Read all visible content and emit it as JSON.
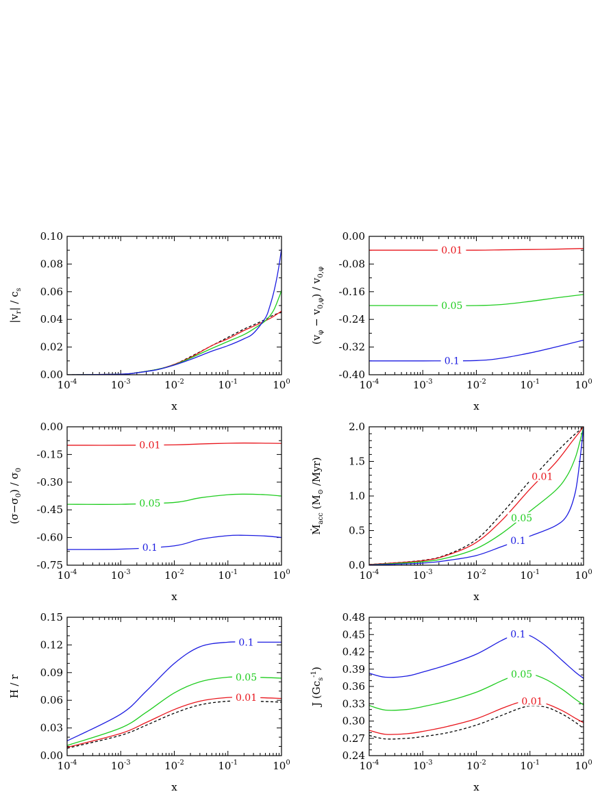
{
  "colors": {
    "red": "#e8141b",
    "green": "#1ecc1e",
    "blue": "#1a1ae0",
    "dashed": "#000000"
  },
  "chart_data": [
    {
      "type": "line",
      "xlabel": "x",
      "ylabel_parts": [
        "|v",
        "r",
        "| / c",
        "s"
      ],
      "xscale": "log",
      "xlim": [
        0.0001,
        1
      ],
      "ylim": [
        0,
        0.1
      ],
      "yticks": [
        0,
        0.02,
        0.04,
        0.06,
        0.08,
        0.1
      ],
      "ytick_labels": [
        "0.00",
        "0.02",
        "0.04",
        "0.06",
        "0.08",
        "0.10"
      ],
      "ytick_minor": 2,
      "series": [
        {
          "label": "",
          "color": "red",
          "dash": true,
          "x": [
            0.0001,
            0.001,
            0.002,
            0.005,
            0.01,
            0.02,
            0.05,
            0.1,
            0.2,
            0.3,
            0.5,
            0.7,
            1
          ],
          "y": [
            0,
            0.0004,
            0.0015,
            0.004,
            0.0075,
            0.013,
            0.021,
            0.027,
            0.033,
            0.036,
            0.04,
            0.043,
            0.045
          ]
        },
        {
          "label": "",
          "color": "red",
          "x": [
            0.0001,
            0.001,
            0.002,
            0.005,
            0.01,
            0.02,
            0.05,
            0.1,
            0.2,
            0.3,
            0.5,
            0.7,
            1
          ],
          "y": [
            0,
            0.0004,
            0.0015,
            0.004,
            0.0075,
            0.0125,
            0.021,
            0.026,
            0.032,
            0.035,
            0.039,
            0.042,
            0.046
          ]
        },
        {
          "label": "",
          "color": "green",
          "x": [
            0.0001,
            0.001,
            0.002,
            0.005,
            0.01,
            0.02,
            0.05,
            0.1,
            0.2,
            0.3,
            0.5,
            0.7,
            0.9,
            1
          ],
          "y": [
            0,
            0.0004,
            0.0015,
            0.004,
            0.0072,
            0.012,
            0.019,
            0.024,
            0.029,
            0.033,
            0.039,
            0.046,
            0.056,
            0.061
          ]
        },
        {
          "label": "",
          "color": "blue",
          "x": [
            0.0001,
            0.001,
            0.002,
            0.005,
            0.01,
            0.02,
            0.05,
            0.1,
            0.2,
            0.3,
            0.5,
            0.6,
            0.7,
            0.8,
            0.9,
            1
          ],
          "y": [
            0,
            0.0004,
            0.0014,
            0.0038,
            0.007,
            0.011,
            0.017,
            0.021,
            0.026,
            0.03,
            0.041,
            0.049,
            0.058,
            0.068,
            0.079,
            0.091
          ]
        }
      ]
    },
    {
      "type": "line",
      "xlabel": "x",
      "ylabel_parts": [
        "(v",
        "φ",
        " − v",
        "0,φ",
        ") / v",
        "0,φ"
      ],
      "xscale": "log",
      "xlim": [
        0.0001,
        1
      ],
      "ylim": [
        -0.4,
        0
      ],
      "yticks": [
        -0.4,
        -0.32,
        -0.24,
        -0.16,
        -0.08,
        0
      ],
      "ytick_labels": [
        "-0.40",
        "-0.32",
        "-0.24",
        "-0.16",
        "-0.08",
        "0.00"
      ],
      "ytick_minor": 2,
      "series": [
        {
          "label": "0.01",
          "color": "red",
          "label_x": 0.0035,
          "x": [
            0.0001,
            0.001,
            0.01,
            0.03,
            0.1,
            0.3,
            1
          ],
          "y": [
            -0.04,
            -0.04,
            -0.04,
            -0.039,
            -0.038,
            -0.037,
            -0.035
          ]
        },
        {
          "label": "0.05",
          "color": "green",
          "label_x": 0.0035,
          "x": [
            0.0001,
            0.001,
            0.01,
            0.03,
            0.1,
            0.3,
            1
          ],
          "y": [
            -0.2,
            -0.2,
            -0.2,
            -0.197,
            -0.188,
            -0.178,
            -0.168
          ]
        },
        {
          "label": "0.1",
          "color": "blue",
          "label_x": 0.0035,
          "x": [
            0.0001,
            0.001,
            0.01,
            0.03,
            0.1,
            0.3,
            1
          ],
          "y": [
            -0.36,
            -0.36,
            -0.359,
            -0.352,
            -0.337,
            -0.32,
            -0.3
          ]
        }
      ]
    },
    {
      "type": "line",
      "xlabel": "x",
      "ylabel_parts": [
        "(σ−σ",
        "0",
        ") / σ",
        "0"
      ],
      "xscale": "log",
      "xlim": [
        0.0001,
        1
      ],
      "ylim": [
        -0.75,
        0
      ],
      "yticks": [
        -0.75,
        -0.6,
        -0.45,
        -0.3,
        -0.15,
        0
      ],
      "ytick_labels": [
        "-0.75",
        "-0.60",
        "-0.45",
        "-0.30",
        "-0.15",
        "0.00"
      ],
      "ytick_minor": 2,
      "series": [
        {
          "label": "0.01",
          "color": "red",
          "label_x": 0.0035,
          "x": [
            0.0001,
            0.001,
            0.01,
            0.03,
            0.1,
            0.2,
            0.5,
            1
          ],
          "y": [
            -0.1,
            -0.1,
            -0.098,
            -0.093,
            -0.089,
            -0.088,
            -0.089,
            -0.09
          ]
        },
        {
          "label": "0.05",
          "color": "green",
          "label_x": 0.0035,
          "x": [
            0.0001,
            0.001,
            0.01,
            0.03,
            0.1,
            0.2,
            0.5,
            1
          ],
          "y": [
            -0.42,
            -0.42,
            -0.41,
            -0.385,
            -0.368,
            -0.365,
            -0.368,
            -0.375
          ]
        },
        {
          "label": "0.1",
          "color": "blue",
          "label_x": 0.0035,
          "x": [
            0.0001,
            0.001,
            0.01,
            0.03,
            0.1,
            0.2,
            0.5,
            1
          ],
          "y": [
            -0.665,
            -0.663,
            -0.645,
            -0.61,
            -0.59,
            -0.588,
            -0.592,
            -0.6
          ]
        }
      ]
    },
    {
      "type": "line",
      "xlabel": "x",
      "ylabel_parts": [
        "Ṁ",
        "acc",
        " (M",
        "⊙",
        " /Myr)"
      ],
      "xscale": "log",
      "xlim": [
        0.0001,
        1
      ],
      "ylim": [
        0,
        2
      ],
      "yticks": [
        0,
        0.5,
        1,
        1.5,
        2
      ],
      "ytick_labels": [
        "0.0",
        "0.5",
        "1.0",
        "1.5",
        "2.0"
      ],
      "ytick_minor": 5,
      "series": [
        {
          "label": "",
          "color": "red",
          "dash": true,
          "x": [
            0.0001,
            0.001,
            0.003,
            0.01,
            0.03,
            0.1,
            0.3,
            0.6,
            1
          ],
          "y": [
            0.01,
            0.07,
            0.16,
            0.37,
            0.75,
            1.22,
            1.62,
            1.85,
            2
          ]
        },
        {
          "label": "0.01",
          "color": "red",
          "label_x": 0.17,
          "x": [
            0.0001,
            0.001,
            0.003,
            0.01,
            0.03,
            0.1,
            0.3,
            0.6,
            1
          ],
          "y": [
            0.01,
            0.065,
            0.15,
            0.33,
            0.65,
            1.1,
            1.48,
            1.78,
            2
          ]
        },
        {
          "label": "0.05",
          "color": "green",
          "label_x": 0.07,
          "x": [
            0.0001,
            0.001,
            0.003,
            0.01,
            0.03,
            0.1,
            0.3,
            0.5,
            0.7,
            0.85,
            1
          ],
          "y": [
            0.005,
            0.05,
            0.11,
            0.24,
            0.46,
            0.78,
            1.08,
            1.3,
            1.55,
            1.78,
            2
          ]
        },
        {
          "label": "0.1",
          "color": "blue",
          "label_x": 0.06,
          "x": [
            0.0001,
            0.001,
            0.003,
            0.01,
            0.03,
            0.1,
            0.3,
            0.5,
            0.7,
            0.85,
            1
          ],
          "y": [
            0.003,
            0.03,
            0.07,
            0.14,
            0.27,
            0.42,
            0.57,
            0.73,
            1.05,
            1.5,
            2
          ]
        }
      ]
    },
    {
      "type": "line",
      "xlabel": "x",
      "ylabel_parts": [
        "H / r"
      ],
      "xscale": "log",
      "xlim": [
        0.0001,
        1
      ],
      "ylim": [
        0,
        0.15
      ],
      "yticks": [
        0,
        0.03,
        0.06,
        0.09,
        0.12,
        0.15
      ],
      "ytick_labels": [
        "0.00",
        "0.03",
        "0.06",
        "0.09",
        "0.12",
        "0.15"
      ],
      "ytick_minor": 3,
      "series": [
        {
          "label": "",
          "color": "red",
          "dash": true,
          "x": [
            0.0001,
            0.001,
            0.003,
            0.01,
            0.03,
            0.1,
            0.3,
            1
          ],
          "y": [
            0.008,
            0.022,
            0.033,
            0.046,
            0.055,
            0.059,
            0.059,
            0.058
          ]
        },
        {
          "label": "0.01",
          "color": "red",
          "label_x": 0.22,
          "x": [
            0.0001,
            0.001,
            0.003,
            0.01,
            0.03,
            0.1,
            0.3,
            1
          ],
          "y": [
            0.009,
            0.024,
            0.036,
            0.05,
            0.059,
            0.063,
            0.063,
            0.062
          ]
        },
        {
          "label": "0.05",
          "color": "green",
          "label_x": 0.22,
          "x": [
            0.0001,
            0.001,
            0.003,
            0.01,
            0.03,
            0.1,
            0.3,
            1
          ],
          "y": [
            0.011,
            0.03,
            0.047,
            0.068,
            0.08,
            0.085,
            0.085,
            0.084
          ]
        },
        {
          "label": "0.1",
          "color": "blue",
          "label_x": 0.22,
          "x": [
            0.0001,
            0.001,
            0.003,
            0.01,
            0.03,
            0.1,
            0.3,
            1
          ],
          "y": [
            0.016,
            0.045,
            0.07,
            0.1,
            0.118,
            0.123,
            0.123,
            0.123
          ]
        }
      ]
    },
    {
      "type": "line",
      "xlabel": "x",
      "ylabel_parts": [
        "J (Gc",
        "s",
        "-1",
        ")"
      ],
      "xscale": "log",
      "xlim": [
        0.0001,
        1
      ],
      "ylim": [
        0.24,
        0.48
      ],
      "yticks": [
        0.24,
        0.27,
        0.3,
        0.33,
        0.36,
        0.39,
        0.42,
        0.45,
        0.48
      ],
      "ytick_labels": [
        "0.24",
        "0.27",
        "0.30",
        "0.33",
        "0.36",
        "0.39",
        "0.42",
        "0.45",
        "0.48"
      ],
      "ytick_minor": 3,
      "series": [
        {
          "label": "",
          "color": "red",
          "dash": true,
          "x": [
            0.0001,
            0.0002,
            0.0005,
            0.001,
            0.003,
            0.01,
            0.03,
            0.06,
            0.1,
            0.2,
            0.4,
            0.7,
            1
          ],
          "y": [
            0.275,
            0.269,
            0.27,
            0.273,
            0.28,
            0.293,
            0.31,
            0.321,
            0.326,
            0.324,
            0.312,
            0.298,
            0.287
          ]
        },
        {
          "label": "0.01",
          "color": "red",
          "label_x": 0.11,
          "x": [
            0.0001,
            0.0002,
            0.0005,
            0.001,
            0.003,
            0.01,
            0.03,
            0.06,
            0.1,
            0.2,
            0.4,
            0.7,
            1
          ],
          "y": [
            0.284,
            0.277,
            0.278,
            0.282,
            0.291,
            0.304,
            0.322,
            0.332,
            0.335,
            0.33,
            0.318,
            0.305,
            0.297
          ]
        },
        {
          "label": "0.05",
          "color": "green",
          "label_x": 0.07,
          "x": [
            0.0001,
            0.0002,
            0.0005,
            0.001,
            0.003,
            0.01,
            0.03,
            0.06,
            0.1,
            0.2,
            0.4,
            0.7,
            1
          ],
          "y": [
            0.327,
            0.319,
            0.32,
            0.325,
            0.335,
            0.35,
            0.37,
            0.381,
            0.382,
            0.372,
            0.355,
            0.338,
            0.328
          ]
        },
        {
          "label": "0.1",
          "color": "blue",
          "label_x": 0.06,
          "x": [
            0.0001,
            0.0002,
            0.0005,
            0.001,
            0.003,
            0.01,
            0.03,
            0.06,
            0.1,
            0.2,
            0.4,
            0.7,
            1
          ],
          "y": [
            0.383,
            0.376,
            0.378,
            0.385,
            0.398,
            0.416,
            0.44,
            0.451,
            0.448,
            0.43,
            0.405,
            0.385,
            0.374
          ]
        }
      ]
    }
  ]
}
